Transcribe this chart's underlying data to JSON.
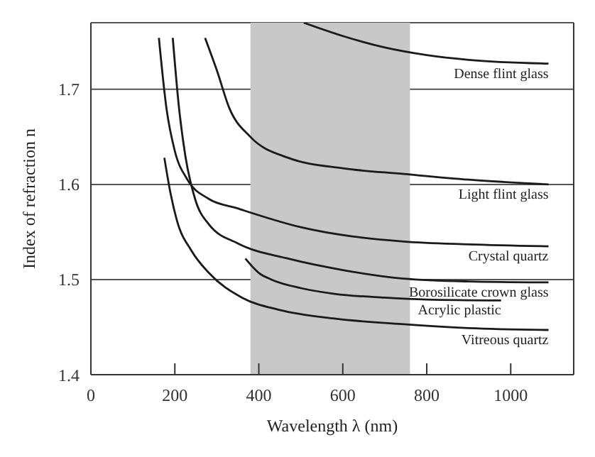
{
  "chart_data": {
    "type": "line",
    "xlabel": "Wavelength λ (nm)",
    "ylabel": "Index of refraction n",
    "xlim": [
      0,
      1150
    ],
    "xticks": [
      0,
      200,
      400,
      600,
      800,
      1000
    ],
    "ylim": [
      1.4,
      1.77
    ],
    "yticks": [
      1.4,
      1.5,
      1.6,
      1.7
    ],
    "grid": "y",
    "marker": "none",
    "line_style": "solid",
    "legend": false,
    "bands": [
      {
        "axis": "x",
        "from": 380,
        "to": 760,
        "color": "#c8c8c8"
      }
    ],
    "series": [
      {
        "name": "Dense flint glass",
        "color": "#1a1a1a",
        "x": [
          507,
          600,
          700,
          800,
          900,
          1090
        ],
        "values": [
          1.77,
          1.756,
          1.744,
          1.736,
          1.731,
          1.727
        ]
      },
      {
        "name": "Light flint glass",
        "color": "#1a1a1a",
        "x": [
          272,
          300,
          330,
          380,
          470,
          600,
          745,
          900,
          1090
        ],
        "values": [
          1.754,
          1.72,
          1.68,
          1.65,
          1.628,
          1.617,
          1.611,
          1.605,
          1.6
        ]
      },
      {
        "name": "Crystal quartz",
        "color": "#1a1a1a",
        "x": [
          162,
          180,
          200,
          230,
          280,
          348,
          500,
          745,
          900,
          1090
        ],
        "values": [
          1.754,
          1.68,
          1.635,
          1.605,
          1.585,
          1.575,
          1.555,
          1.54,
          1.537,
          1.535
        ]
      },
      {
        "name": "Borosilicate crown glass",
        "color": "#1a1a1a",
        "x": [
          195,
          210,
          225,
          248,
          281,
          350,
          470,
          600,
          745,
          900,
          1090
        ],
        "values": [
          1.754,
          1.68,
          1.63,
          1.585,
          1.558,
          1.538,
          1.522,
          1.51,
          1.501,
          1.498,
          1.497
        ]
      },
      {
        "name": "Acrylic plastic",
        "color": "#1a1a1a",
        "x": [
          368,
          400,
          430,
          500,
          580,
          700,
          800,
          977
        ],
        "values": [
          1.522,
          1.507,
          1.5,
          1.491,
          1.485,
          1.481,
          1.479,
          1.478
        ]
      },
      {
        "name": "Vitreous quartz",
        "color": "#1a1a1a",
        "x": [
          175,
          190,
          205,
          240,
          281,
          360,
          450,
          580,
          745,
          900,
          1090
        ],
        "values": [
          1.628,
          1.59,
          1.562,
          1.53,
          1.507,
          1.481,
          1.468,
          1.459,
          1.453,
          1.449,
          1.447
        ]
      }
    ]
  }
}
